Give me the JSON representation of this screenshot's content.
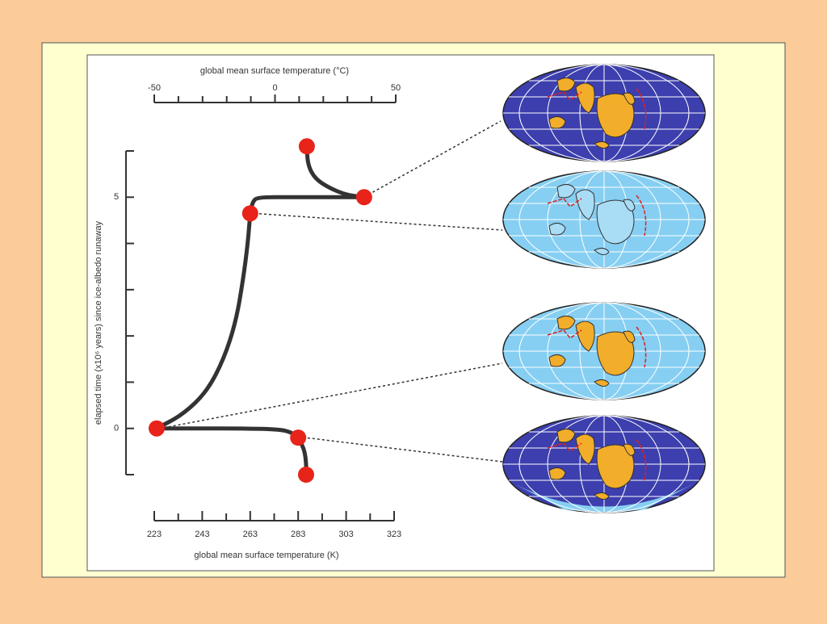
{
  "chart_data": {
    "type": "line",
    "xlabel": "global mean surface temperature (K)",
    "xlim": [
      223,
      323
    ],
    "xticks": [
      223,
      243,
      263,
      283,
      303,
      323
    ],
    "xminor": [
      233,
      253,
      273,
      293,
      313
    ],
    "x2label": "global mean surface temperature (°C)",
    "x2lim": [
      -50,
      50
    ],
    "x2ticks": [
      -50,
      0,
      50
    ],
    "x2minor": [
      -40,
      -30,
      -20,
      -10,
      10,
      20,
      30,
      40
    ],
    "ylabel": "elapsed time (x10⁶ years) since ice-albedo runaway",
    "ylim": [
      -1,
      6
    ],
    "yticks": [
      0,
      5
    ],
    "yminor": [
      -1,
      1,
      2,
      3,
      4,
      6
    ],
    "series": [
      {
        "color": "#333333",
        "x": [
          224,
          240,
          260,
          275,
          280,
          283,
          286,
          286.5
        ],
        "values": [
          0,
          0,
          0,
          -0.02,
          -0.08,
          -0.2,
          -0.5,
          -1.0
        ]
      },
      {
        "color": "#333333",
        "x": [
          224,
          235,
          245,
          252,
          257,
          260,
          262,
          263,
          264,
          266,
          280,
          300,
          310.5
        ],
        "values": [
          0,
          0.3,
          0.8,
          1.5,
          2.3,
          3.2,
          4.0,
          4.65,
          4.9,
          5.0,
          5.0,
          5.0,
          5.0
        ]
      },
      {
        "color": "#333333",
        "x": [
          286.6,
          287,
          290,
          296,
          303,
          310.5
        ],
        "values": [
          6.1,
          5.7,
          5.4,
          5.2,
          5.05,
          5.0
        ]
      }
    ],
    "points": {
      "color": "#e8231a",
      "x": [
        224,
        283,
        286.3,
        263,
        310.5,
        286.6
      ],
      "values": [
        0,
        -0.2,
        -1,
        4.65,
        5,
        6.1
      ]
    }
  }
}
